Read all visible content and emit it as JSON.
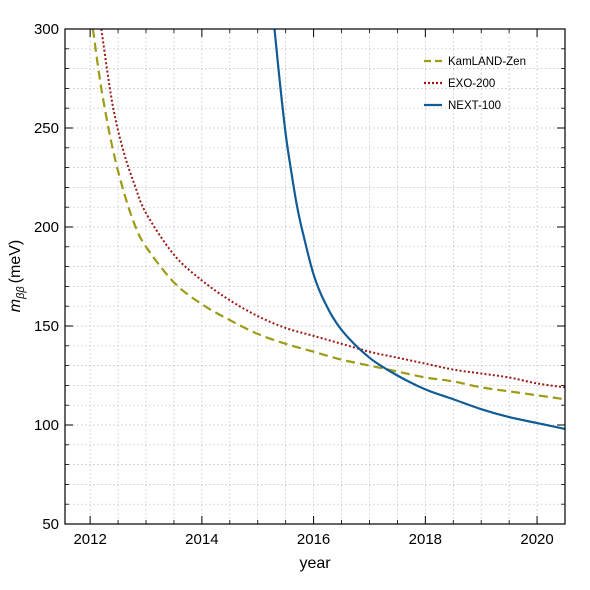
{
  "chart_data": {
    "type": "line",
    "xlabel": "year",
    "ylabel": "m_ββ (meV)",
    "ylabel_parts": {
      "symbol": "m",
      "subscript": "ββ",
      "unit": "(meV)"
    },
    "xlim": [
      2011.55,
      2020.5
    ],
    "ylim": [
      50,
      300
    ],
    "x_ticks": [
      2012,
      2014,
      2016,
      2018,
      2020
    ],
    "y_ticks": [
      50,
      100,
      150,
      200,
      250,
      300
    ],
    "x_tick_labels": [
      "2012",
      "2014",
      "2016",
      "2018",
      "2020"
    ],
    "y_tick_labels": [
      "50",
      "100",
      "150",
      "200",
      "250",
      "300"
    ],
    "grid": true,
    "legend_position": "top-right",
    "series": [
      {
        "name": "KamLAND-Zen",
        "color": "#9c9c17",
        "style": "dashed",
        "x": [
          2012.05,
          2012.2,
          2012.4,
          2012.6,
          2012.8,
          2013.0,
          2013.5,
          2014.0,
          2014.5,
          2015.0,
          2015.5,
          2016.0,
          2016.5,
          2017.0,
          2017.5,
          2018.0,
          2018.5,
          2019.0,
          2019.5,
          2020.0,
          2020.5
        ],
        "y": [
          300,
          270,
          240,
          218,
          201,
          190,
          172,
          161,
          153,
          146,
          141,
          137,
          133,
          130,
          127,
          124,
          122,
          119,
          117,
          115,
          113
        ]
      },
      {
        "name": "EXO-200",
        "color": "#9b1a14",
        "style": "dotted",
        "x": [
          2012.2,
          2012.4,
          2012.6,
          2012.8,
          2013.0,
          2013.5,
          2014.0,
          2014.5,
          2015.0,
          2015.5,
          2016.0,
          2016.5,
          2017.0,
          2017.5,
          2018.0,
          2018.5,
          2019.0,
          2019.5,
          2020.0,
          2020.5
        ],
        "y": [
          300,
          262,
          238,
          221,
          207,
          186,
          173,
          163,
          155,
          149,
          145,
          141,
          137,
          134,
          131,
          128,
          126,
          124,
          121,
          119
        ]
      },
      {
        "name": "NEXT-100",
        "color": "#115c96",
        "style": "solid",
        "x": [
          2015.3,
          2015.4,
          2015.5,
          2015.6,
          2015.7,
          2015.8,
          2016.0,
          2016.2,
          2016.5,
          2017.0,
          2017.5,
          2018.0,
          2018.5,
          2019.0,
          2019.5,
          2020.0,
          2020.5
        ],
        "y": [
          300,
          272,
          247,
          228,
          211,
          198,
          176,
          162,
          148,
          134,
          125,
          118,
          113,
          108,
          104,
          101,
          98
        ]
      }
    ]
  }
}
